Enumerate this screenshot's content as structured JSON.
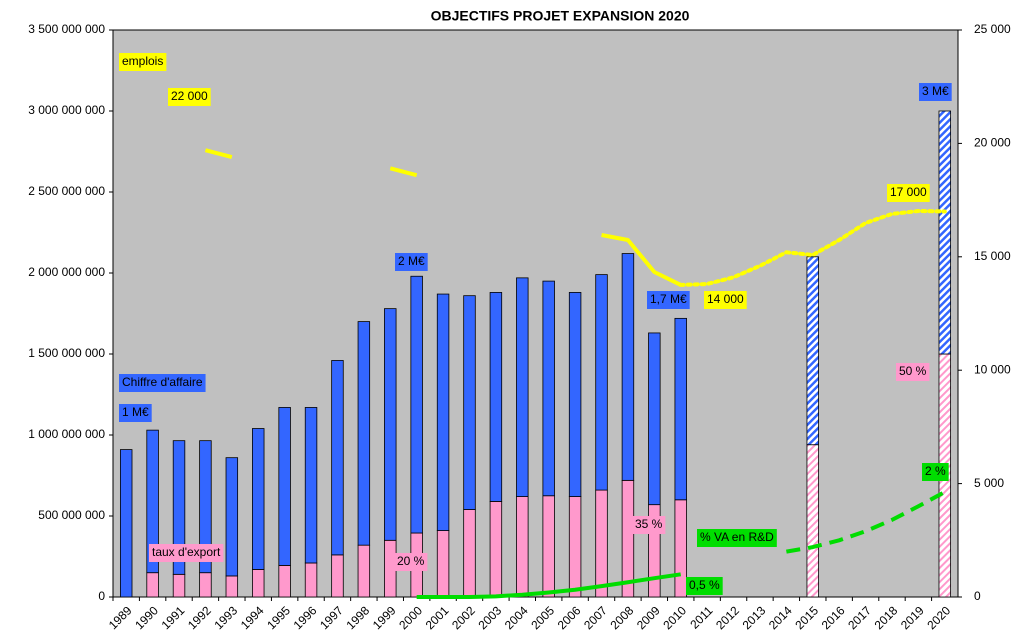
{
  "chart_data": {
    "type": "bar",
    "title": "OBJECTIFS PROJET EXPANSION 2020",
    "categories": [
      "1989",
      "1990",
      "1991",
      "1992",
      "1993",
      "1994",
      "1995",
      "1996",
      "1997",
      "1998",
      "1999",
      "2000",
      "2001",
      "2002",
      "2003",
      "2004",
      "2005",
      "2006",
      "2007",
      "2008",
      "2009",
      "2010",
      "2011",
      "2012",
      "2013",
      "2014",
      "2015",
      "2016",
      "2017",
      "2018",
      "2019",
      "2020"
    ],
    "ylim": [
      0,
      3500000000
    ],
    "yticks": [
      0,
      {
        "value": 500000000,
        "label": "500 000 000"
      },
      {
        "value": 1000000000,
        "label": "1 000 000 000"
      },
      {
        "value": 1500000000,
        "label": "1 500 000 000"
      },
      {
        "value": 2000000000,
        "label": "2 000 000 000"
      },
      {
        "value": 2500000000,
        "label": "2 500 000 000"
      },
      {
        "value": 3000000000,
        "label": "3 000 000 000"
      },
      {
        "value": 3500000000,
        "label": "3 500 000 000"
      }
    ],
    "y2lim": [
      0,
      25000
    ],
    "y2ticks": [
      0,
      {
        "value": 5000,
        "label": "5 000"
      },
      {
        "value": 10000,
        "label": "10 000"
      },
      {
        "value": 15000,
        "label": "15 000"
      },
      {
        "value": 20000,
        "label": "20 000"
      },
      {
        "value": 25000,
        "label": "25 000"
      }
    ],
    "stacked": true,
    "background": "#c0c0c0",
    "series": [
      {
        "name": "taux d'export",
        "type": "bar",
        "color": "#ff99cc",
        "values": [
          0,
          150000000,
          140000000,
          150000000,
          130000000,
          170000000,
          195000000,
          210000000,
          260000000,
          320000000,
          350000000,
          395000000,
          410000000,
          540000000,
          590000000,
          620000000,
          625000000,
          620000000,
          660000000,
          720000000,
          570000000,
          600000000,
          null,
          null,
          null,
          null,
          940000000,
          null,
          null,
          null,
          null,
          1500000000
        ],
        "hatched": [
          false,
          false,
          false,
          false,
          false,
          false,
          false,
          false,
          false,
          false,
          false,
          false,
          false,
          false,
          false,
          false,
          false,
          false,
          false,
          false,
          false,
          false,
          false,
          false,
          false,
          false,
          true,
          false,
          false,
          false,
          false,
          true
        ]
      },
      {
        "name": "Chiffre d'affaire",
        "type": "bar",
        "color": "#3366ff",
        "values": [
          910000000,
          880000000,
          825000000,
          815000000,
          730000000,
          870000000,
          975000000,
          960000000,
          1200000000,
          1380000000,
          1430000000,
          1585000000,
          1460000000,
          1320000000,
          1290000000,
          1350000000,
          1325000000,
          1260000000,
          1330000000,
          1400000000,
          1060000000,
          1120000000,
          null,
          null,
          null,
          null,
          1160000000,
          null,
          null,
          null,
          null,
          1500000000
        ],
        "hatched": [
          false,
          false,
          false,
          false,
          false,
          false,
          false,
          false,
          false,
          false,
          false,
          false,
          false,
          false,
          false,
          false,
          false,
          false,
          false,
          false,
          false,
          false,
          false,
          false,
          false,
          false,
          true,
          false,
          false,
          false,
          false,
          true
        ]
      },
      {
        "type": "line",
        "axis": "y2",
        "color": "#ffff00",
        "dash": "solid",
        "values": [
          null,
          22000,
          null,
          19700,
          19400,
          null,
          19270,
          null,
          null,
          null,
          18900,
          18600,
          null,
          17060,
          null,
          16400,
          null,
          null,
          15960,
          15740,
          14330,
          13760,
          null,
          null,
          null,
          null,
          null,
          null,
          null,
          null,
          null,
          null
        ]
      },
      {
        "type": "line",
        "axis": "y2",
        "color": "#ffff00",
        "dash": "dotted",
        "values": [
          null,
          null,
          null,
          null,
          null,
          null,
          null,
          null,
          null,
          null,
          null,
          null,
          null,
          null,
          null,
          null,
          null,
          null,
          null,
          null,
          null,
          13760,
          13800,
          14100,
          14600,
          15200,
          15080,
          15740,
          16490,
          16890,
          17020,
          17000
        ]
      },
      {
        "type": "line",
        "axis": "y2",
        "color": "#00dd00",
        "dash": "solid",
        "values": [
          null,
          null,
          null,
          null,
          null,
          null,
          null,
          null,
          null,
          null,
          null,
          0,
          0,
          0,
          30,
          100,
          200,
          320,
          480,
          650,
          830,
          1000,
          null,
          null,
          null,
          null,
          null,
          null,
          null,
          null,
          null,
          null
        ]
      },
      {
        "type": "line",
        "axis": "y2",
        "color": "#00dd00",
        "dash": "dashed",
        "values": [
          null,
          null,
          null,
          null,
          null,
          null,
          null,
          null,
          null,
          null,
          null,
          null,
          null,
          null,
          null,
          null,
          null,
          null,
          null,
          null,
          null,
          1000,
          null,
          1500,
          null,
          2000,
          2200,
          2500,
          2900,
          3400,
          4000,
          4630
        ]
      }
    ],
    "annotations": [
      {
        "text": "emplois",
        "color": "#ffff00"
      },
      {
        "text": "22 000",
        "color": "#ffff00"
      },
      {
        "text": "17 000",
        "color": "#ffff00"
      },
      {
        "text": "14 000",
        "color": "#ffff00"
      },
      {
        "text": "3 M€",
        "color": "#3366ff"
      },
      {
        "text": "2 M€",
        "color": "#3366ff"
      },
      {
        "text": "1,7 M€",
        "color": "#3366ff"
      },
      {
        "text": "1 M€",
        "color": "#3366ff"
      },
      {
        "text": "20 %",
        "color": "#ff99cc"
      },
      {
        "text": "35 %",
        "color": "#ff99cc"
      },
      {
        "text": "50 %",
        "color": "#ff99cc"
      },
      {
        "text": "% VA  en R&D",
        "color": "#00dd00"
      },
      {
        "text": "0,5 %",
        "color": "#00dd00"
      },
      {
        "text": "2 %",
        "color": "#00dd00"
      }
    ]
  }
}
